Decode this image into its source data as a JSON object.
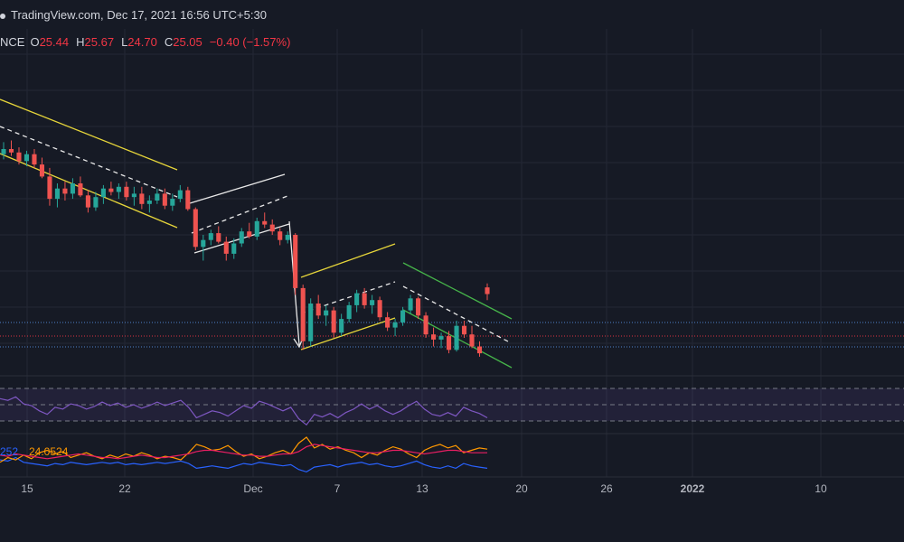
{
  "header": {
    "source": "TradingView.com",
    "sep": ", ",
    "datetime": "Dec 17, 2021 16:56 UTC+5:30"
  },
  "ohlc": {
    "symbol_fragment": "NCE",
    "o_label": "O",
    "o_value": "25.44",
    "h_label": "H",
    "h_value": "25.67",
    "l_label": "L",
    "l_value": "24.70",
    "c_label": "C",
    "c_value": "25.05",
    "change": "−0.40 (−1.57%)"
  },
  "colors": {
    "background": "#161a25",
    "grid": "#242835",
    "up_candle": "#26a69a",
    "down_candle": "#ef5350",
    "channel_yellow": "#e6d53a",
    "channel_white": "#e8e8e8",
    "channel_green": "#46b44a",
    "rsi_line": "#7e57c2",
    "rsi_band": "rgba(126,87,194,0.12)",
    "dmi_blue": "#2962ff",
    "dmi_orange": "#ff9800",
    "dmi_red": "#e91e63",
    "axis_text": "#b2b5be",
    "price_line_red": "#f23645",
    "price_line_blue": "#5b9cf6"
  },
  "chart_data": [
    {
      "type": "candlestick",
      "title": "",
      "x_ticks": [
        "15",
        "22",
        "Dec",
        "7",
        "13",
        "20",
        "26",
        "2022",
        "10"
      ],
      "bold_ticks": [
        "2022"
      ],
      "grid": true,
      "latest": {
        "open": 25.44,
        "high": 25.67,
        "low": 24.7,
        "close": 25.05,
        "change": -0.4,
        "change_pct": -1.57
      },
      "ohlc_series": [
        [
          33.2,
          33.9,
          32.9,
          33.5
        ],
        [
          33.5,
          34.0,
          33.1,
          33.3
        ],
        [
          33.3,
          33.6,
          32.6,
          32.8
        ],
        [
          32.8,
          33.4,
          32.5,
          33.2
        ],
        [
          33.2,
          33.5,
          32.4,
          32.6
        ],
        [
          32.6,
          33.0,
          31.8,
          31.9
        ],
        [
          31.9,
          32.4,
          30.2,
          30.6
        ],
        [
          30.6,
          31.5,
          30.1,
          31.2
        ],
        [
          31.2,
          31.6,
          30.5,
          30.9
        ],
        [
          30.9,
          31.8,
          30.6,
          31.5
        ],
        [
          31.5,
          31.9,
          30.7,
          30.8
        ],
        [
          30.8,
          31.1,
          29.8,
          30.1
        ],
        [
          30.1,
          31.0,
          29.9,
          30.7
        ],
        [
          30.7,
          31.4,
          30.3,
          31.2
        ],
        [
          31.2,
          31.6,
          30.8,
          31.0
        ],
        [
          31.0,
          31.5,
          30.6,
          31.3
        ],
        [
          31.3,
          31.6,
          30.5,
          30.7
        ],
        [
          30.7,
          31.3,
          30.2,
          30.9
        ],
        [
          30.9,
          31.3,
          30.0,
          30.3
        ],
        [
          30.3,
          30.8,
          29.8,
          30.5
        ],
        [
          30.5,
          31.2,
          30.3,
          30.9
        ],
        [
          30.9,
          31.2,
          30.0,
          30.2
        ],
        [
          30.2,
          30.9,
          29.9,
          30.6
        ],
        [
          30.6,
          31.4,
          30.4,
          31.1
        ],
        [
          31.1,
          31.3,
          29.9,
          30.0
        ],
        [
          30.0,
          30.1,
          27.6,
          27.8
        ],
        [
          27.8,
          28.5,
          27.0,
          28.2
        ],
        [
          28.2,
          28.8,
          27.9,
          28.6
        ],
        [
          28.6,
          29.0,
          28.0,
          28.1
        ],
        [
          28.1,
          28.4,
          27.0,
          27.4
        ],
        [
          27.4,
          28.3,
          27.1,
          28.0
        ],
        [
          28.0,
          28.9,
          27.8,
          28.7
        ],
        [
          28.7,
          29.2,
          28.3,
          28.4
        ],
        [
          28.4,
          29.5,
          28.2,
          29.3
        ],
        [
          29.3,
          29.8,
          28.9,
          29.1
        ],
        [
          29.1,
          29.4,
          28.5,
          28.7
        ],
        [
          28.7,
          28.9,
          27.9,
          28.2
        ],
        [
          28.2,
          28.7,
          28.0,
          28.5
        ],
        [
          28.5,
          28.6,
          25.0,
          25.4
        ],
        [
          25.4,
          25.6,
          21.8,
          22.3
        ],
        [
          22.3,
          24.8,
          22.0,
          24.5
        ],
        [
          24.5,
          25.0,
          23.6,
          23.8
        ],
        [
          23.8,
          24.4,
          23.2,
          24.1
        ],
        [
          24.1,
          24.3,
          22.5,
          22.8
        ],
        [
          22.8,
          23.9,
          22.6,
          23.6
        ],
        [
          23.6,
          24.6,
          23.4,
          24.4
        ],
        [
          24.4,
          25.3,
          24.0,
          25.1
        ],
        [
          25.1,
          25.4,
          24.2,
          24.4
        ],
        [
          24.4,
          25.0,
          23.9,
          24.7
        ],
        [
          24.7,
          24.9,
          23.5,
          23.7
        ],
        [
          23.7,
          24.0,
          22.9,
          23.1
        ],
        [
          23.1,
          23.6,
          22.6,
          23.4
        ],
        [
          23.4,
          24.3,
          23.2,
          24.1
        ],
        [
          24.1,
          25.0,
          23.9,
          24.8
        ],
        [
          24.8,
          24.9,
          23.6,
          23.8
        ],
        [
          23.8,
          24.0,
          22.5,
          22.7
        ],
        [
          22.7,
          23.1,
          22.0,
          22.4
        ],
        [
          22.4,
          22.8,
          21.9,
          22.6
        ],
        [
          22.6,
          22.9,
          21.6,
          21.8
        ],
        [
          21.8,
          23.5,
          21.7,
          23.2
        ],
        [
          23.2,
          23.5,
          22.5,
          22.7
        ],
        [
          22.7,
          23.2,
          21.9,
          22.0
        ],
        [
          22.0,
          22.3,
          21.4,
          21.6
        ],
        [
          25.44,
          25.67,
          24.7,
          25.05
        ]
      ]
    },
    {
      "type": "line",
      "title": "",
      "ylim": [
        20,
        80
      ],
      "series": [
        {
          "values": [
            58,
            56,
            60,
            52,
            50,
            44,
            40,
            48,
            46,
            52,
            50,
            46,
            49,
            54,
            50,
            53,
            48,
            51,
            47,
            50,
            54,
            50,
            53,
            56,
            48,
            36,
            40,
            44,
            42,
            38,
            44,
            50,
            47,
            55,
            52,
            48,
            44,
            48,
            35,
            28,
            40,
            37,
            41,
            36,
            42,
            46,
            52,
            46,
            50,
            44,
            40,
            44,
            50,
            55,
            46,
            40,
            38,
            42,
            38,
            48,
            44,
            41,
            36
          ]
        }
      ]
    },
    {
      "type": "line",
      "title": "",
      "series_labels": [
        "252",
        "24.0524"
      ],
      "series": [
        {
          "values": [
            20,
            19,
            22,
            18,
            17,
            16,
            15,
            17,
            16,
            18,
            17,
            16,
            17,
            18,
            17,
            18,
            16,
            17,
            16,
            17,
            18,
            17,
            18,
            19,
            17,
            13,
            14,
            15,
            14,
            13,
            15,
            17,
            16,
            18,
            17,
            16,
            15,
            16,
            12,
            10,
            14,
            15,
            16,
            14,
            16,
            17,
            18,
            16,
            17,
            15,
            14,
            15,
            17,
            19,
            16,
            14,
            13,
            15,
            13,
            17,
            15,
            14,
            13
          ]
        },
        {
          "values": [
            18,
            22,
            20,
            24,
            21,
            26,
            28,
            25,
            27,
            22,
            24,
            26,
            23,
            21,
            24,
            22,
            25,
            23,
            26,
            24,
            21,
            23,
            22,
            20,
            26,
            33,
            31,
            28,
            29,
            32,
            27,
            23,
            25,
            21,
            23,
            26,
            28,
            25,
            34,
            39,
            30,
            33,
            29,
            31,
            28,
            26,
            22,
            26,
            24,
            28,
            31,
            29,
            25,
            22,
            28,
            31,
            33,
            30,
            32,
            26,
            28,
            30,
            29
          ]
        },
        {
          "values": [
            24,
            23,
            25,
            24,
            23,
            22,
            21,
            22,
            23,
            24,
            25,
            24,
            23,
            22,
            22,
            21,
            22,
            23,
            24,
            23,
            22,
            22,
            23,
            24,
            25,
            27,
            28,
            28,
            27,
            26,
            25,
            24,
            24,
            23,
            23,
            24,
            25,
            25,
            27,
            31,
            33,
            32,
            31,
            30,
            29,
            28,
            27,
            26,
            26,
            27,
            28,
            28,
            27,
            26,
            25,
            26,
            27,
            28,
            28,
            27,
            26,
            26,
            26
          ]
        }
      ]
    }
  ]
}
